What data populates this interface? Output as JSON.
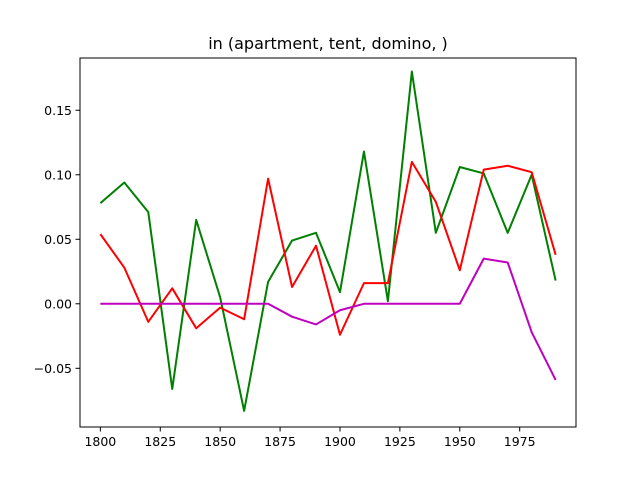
{
  "chart_data": {
    "type": "line",
    "title": "in (apartment, tent, domino, )",
    "xlabel": "",
    "ylabel": "",
    "xlim": [
      1791.5,
      1998.5
    ],
    "ylim": [
      -0.0955,
      0.1905
    ],
    "xticks": [
      1800,
      1825,
      1850,
      1875,
      1900,
      1925,
      1950,
      1975
    ],
    "xtick_labels": [
      "1800",
      "1825",
      "1850",
      "1875",
      "1900",
      "1925",
      "1950",
      "1975"
    ],
    "yticks": [
      -0.05,
      0.0,
      0.05,
      0.1,
      0.15
    ],
    "ytick_labels": [
      "−0.05",
      "0.00",
      "0.05",
      "0.10",
      "0.15"
    ],
    "grid": false,
    "x": [
      1800,
      1810,
      1820,
      1830,
      1840,
      1850,
      1860,
      1870,
      1880,
      1890,
      1900,
      1910,
      1920,
      1930,
      1940,
      1950,
      1960,
      1970,
      1980,
      1990
    ],
    "series": [
      {
        "color": "#008000",
        "values": [
          0.078,
          0.094,
          0.071,
          -0.066,
          0.065,
          0.005,
          -0.083,
          0.017,
          0.049,
          0.055,
          0.009,
          0.118,
          0.002,
          0.18,
          0.055,
          0.106,
          0.101,
          0.055,
          0.1,
          0.018
        ]
      },
      {
        "color": "#ff0000",
        "values": [
          0.054,
          0.028,
          -0.014,
          0.012,
          -0.019,
          -0.003,
          -0.012,
          0.097,
          0.013,
          0.045,
          -0.024,
          0.016,
          0.016,
          0.11,
          0.079,
          0.026,
          0.104,
          0.107,
          0.102,
          0.038
        ]
      },
      {
        "color": "#bf00bf",
        "values": [
          0.0,
          0.0,
          0.0,
          0.0,
          0.0,
          0.0,
          0.0,
          0.0,
          -0.01,
          -0.016,
          -0.005,
          0.0,
          0.0,
          0.0,
          0.0,
          0.0,
          0.035,
          0.032,
          -0.022,
          -0.059
        ]
      }
    ]
  }
}
